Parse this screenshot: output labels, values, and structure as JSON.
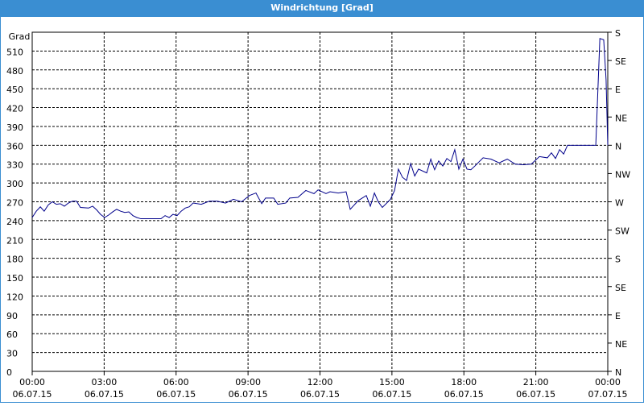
{
  "chart_data": {
    "type": "line",
    "title": "Windrichtung [Grad]",
    "y_label": "Grad",
    "color": "#00008b",
    "grid": true,
    "x": [
      0,
      0.17,
      0.34,
      0.5,
      0.67,
      0.84,
      1.01,
      1.17,
      1.34,
      1.51,
      1.68,
      1.85,
      2.01,
      2.35,
      2.52,
      2.69,
      2.85,
      3.02,
      3.19,
      3.36,
      3.52,
      3.69,
      3.86,
      4.03,
      4.2,
      4.36,
      4.53,
      4.87,
      5.37,
      5.54,
      5.71,
      5.87,
      6.04,
      6.21,
      6.38,
      6.55,
      6.71,
      7.05,
      7.39,
      7.72,
      8.06,
      8.39,
      8.73,
      9.06,
      9.33,
      9.57,
      9.73,
      10.07,
      10.24,
      10.57,
      10.74,
      11.08,
      11.41,
      11.75,
      11.92,
      12.25,
      12.42,
      12.76,
      13.09,
      13.26,
      13.6,
      13.93,
      14.1,
      14.27,
      14.43,
      14.6,
      14.94,
      15.11,
      15.27,
      15.44,
      15.61,
      15.78,
      15.95,
      16.11,
      16.45,
      16.62,
      16.78,
      16.95,
      17.12,
      17.29,
      17.46,
      17.62,
      17.79,
      17.96,
      18.13,
      18.29,
      18.46,
      18.8,
      19.13,
      19.47,
      19.81,
      20.14,
      20.48,
      20.81,
      21.15,
      21.48,
      21.65,
      21.82,
      21.99,
      22.16,
      22.32,
      23.5,
      23.67,
      23.83,
      23.93,
      24
    ],
    "values": [
      245,
      255,
      262,
      255,
      265,
      270,
      266,
      267,
      263,
      268,
      271,
      271,
      261,
      260,
      263,
      257,
      250,
      245,
      249,
      254,
      258,
      255,
      253,
      254,
      248,
      245,
      243,
      243,
      243,
      248,
      245,
      250,
      248,
      255,
      260,
      262,
      268,
      266,
      271,
      271,
      268,
      274,
      270,
      280,
      284,
      267,
      276,
      276,
      266,
      268,
      276,
      277,
      288,
      283,
      289,
      283,
      286,
      284,
      286,
      258,
      272,
      280,
      263,
      284,
      270,
      261,
      274,
      288,
      322,
      309,
      304,
      331,
      311,
      322,
      316,
      338,
      321,
      335,
      327,
      339,
      334,
      353,
      322,
      338,
      322,
      321,
      327,
      340,
      338,
      332,
      338,
      330,
      329,
      330,
      342,
      340,
      348,
      339,
      353,
      346,
      360,
      360,
      530,
      528,
      464,
      360
    ],
    "xlim": [
      0,
      24
    ],
    "xticks": [
      {
        "value": 0,
        "label": "00:00",
        "date": "06.07.15"
      },
      {
        "value": 3,
        "label": "03:00",
        "date": "06.07.15"
      },
      {
        "value": 6,
        "label": "06:00",
        "date": "06.07.15"
      },
      {
        "value": 9,
        "label": "09:00",
        "date": "06.07.15"
      },
      {
        "value": 12,
        "label": "12:00",
        "date": "06.07.15"
      },
      {
        "value": 15,
        "label": "15:00",
        "date": "06.07.15"
      },
      {
        "value": 18,
        "label": "18:00",
        "date": "06.07.15"
      },
      {
        "value": 21,
        "label": "21:00",
        "date": "06.07.15"
      },
      {
        "value": 24,
        "label": "00:00",
        "date": "07.07.15"
      }
    ],
    "ylim": [
      0,
      540
    ],
    "yticks": [
      0,
      30,
      60,
      90,
      120,
      150,
      180,
      210,
      240,
      270,
      300,
      330,
      360,
      390,
      420,
      450,
      480,
      510
    ],
    "y2lim": [
      0,
      540
    ],
    "y2ticks": [
      {
        "value": 0,
        "label": "N"
      },
      {
        "value": 45,
        "label": "NE"
      },
      {
        "value": 90,
        "label": "E"
      },
      {
        "value": 135,
        "label": "SE"
      },
      {
        "value": 180,
        "label": "S"
      },
      {
        "value": 225,
        "label": "SW"
      },
      {
        "value": 270,
        "label": "W"
      },
      {
        "value": 315,
        "label": "NW"
      },
      {
        "value": 360,
        "label": "N"
      },
      {
        "value": 405,
        "label": "NE"
      },
      {
        "value": 450,
        "label": "E"
      },
      {
        "value": 495,
        "label": "SE"
      },
      {
        "value": 540,
        "label": "S"
      }
    ]
  }
}
